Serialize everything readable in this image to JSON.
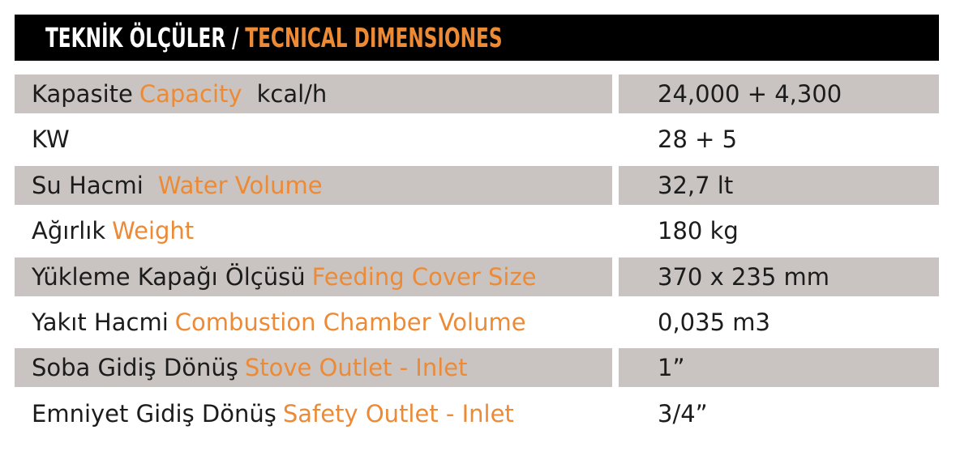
{
  "header": {
    "title_tr": "TEKNİK ÖLÇÜLER",
    "separator": "/",
    "title_en": "TECNICAL DIMENSIONES"
  },
  "rows": [
    {
      "tr": "Kapasite",
      "en": "Capacity",
      "suffix": "kcal/h",
      "value": "24,000 + 4,300"
    },
    {
      "tr": "KW",
      "en": "",
      "suffix": "",
      "value": "28 + 5"
    },
    {
      "tr": "Su Hacmi",
      "en": "Water Volume",
      "suffix": "",
      "value": "32,7 lt"
    },
    {
      "tr": "Ağırlık",
      "en": "Weight",
      "suffix": "",
      "value": "180 kg"
    },
    {
      "tr": "Yükleme Kapağı Ölçüsü",
      "en": "Feeding Cover Size",
      "suffix": "",
      "value": "370 x 235 mm"
    },
    {
      "tr": "Yakıt Hacmi",
      "en": "Combustion Chamber Volume",
      "suffix": "",
      "value": "0,035 m3"
    },
    {
      "tr": "Soba Gidiş Dönüş",
      "en": "Stove Outlet - Inlet",
      "suffix": "",
      "value": "1”"
    },
    {
      "tr": "Emniyet Gidiş Dönüş",
      "en": "Safety Outlet - Inlet",
      "suffix": "",
      "value": "3/4”"
    }
  ],
  "colors": {
    "accent": "#ec8a35",
    "header_bg": "#000000",
    "row_shade": "#c9c4c1",
    "text": "#1c1c1c"
  }
}
